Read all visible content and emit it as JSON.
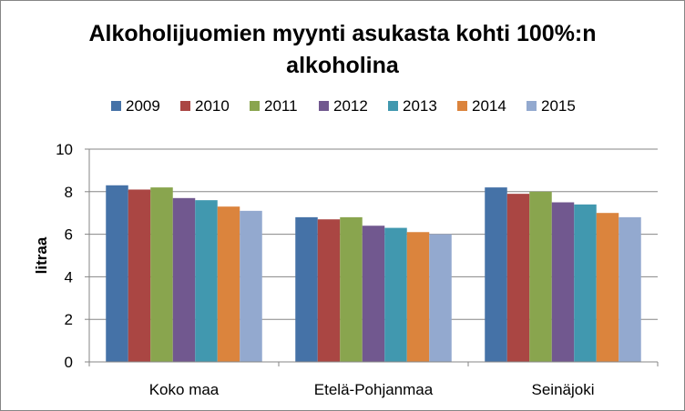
{
  "chart_data": {
    "type": "bar",
    "title_lines": [
      "Alkoholijuomien myynti asukasta kohti 100%:n",
      "alkoholina"
    ],
    "ylabel": "litraa",
    "xlabel": "",
    "ylim": [
      0,
      10
    ],
    "yticks": [
      0,
      2,
      4,
      6,
      8,
      10
    ],
    "grid": true,
    "legend_position": "top",
    "categories": [
      "Koko maa",
      "Etelä-Pohjanmaa",
      "Seinäjoki"
    ],
    "series": [
      {
        "name": "2009",
        "color": "#4572A7",
        "values": [
          8.3,
          6.8,
          8.2
        ]
      },
      {
        "name": "2010",
        "color": "#AA4643",
        "values": [
          8.1,
          6.7,
          7.9
        ]
      },
      {
        "name": "2011",
        "color": "#89A54E",
        "values": [
          8.2,
          6.8,
          8.0
        ]
      },
      {
        "name": "2012",
        "color": "#71588F",
        "values": [
          7.7,
          6.4,
          7.5
        ]
      },
      {
        "name": "2013",
        "color": "#4198AF",
        "values": [
          7.6,
          6.3,
          7.4
        ]
      },
      {
        "name": "2014",
        "color": "#DB843D",
        "values": [
          7.3,
          6.1,
          7.0
        ]
      },
      {
        "name": "2015",
        "color": "#93A9CF",
        "values": [
          7.1,
          6.0,
          6.8
        ]
      }
    ]
  }
}
